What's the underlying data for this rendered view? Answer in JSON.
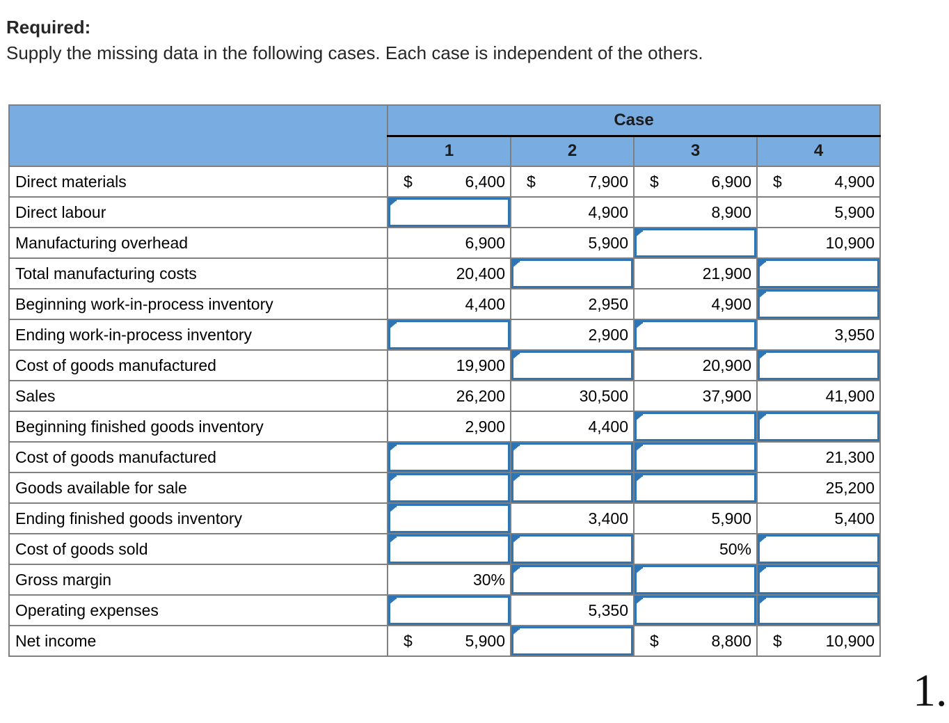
{
  "page": {
    "heading": "Required:",
    "subtitle": "Supply the missing data in the following cases. Each case is independent of the others.",
    "page_numeral": "1."
  },
  "colors": {
    "header_blue": "#79ACE1",
    "grid_gray": "#7f7f7f",
    "input_border_blue": "#2E75B6",
    "case_underline": "#000000"
  },
  "table": {
    "case_header": "Case",
    "case_columns": [
      "1",
      "2",
      "3",
      "4"
    ],
    "rows": [
      {
        "label": "Direct materials",
        "cells": [
          {
            "type": "value",
            "dollar": true,
            "value": "6,400"
          },
          {
            "type": "value",
            "dollar": true,
            "value": "7,900"
          },
          {
            "type": "value",
            "dollar": true,
            "value": "6,900"
          },
          {
            "type": "value",
            "dollar": true,
            "value": "4,900"
          }
        ]
      },
      {
        "label": "Direct labour",
        "cells": [
          {
            "type": "input"
          },
          {
            "type": "value",
            "value": "4,900"
          },
          {
            "type": "value",
            "value": "8,900"
          },
          {
            "type": "value",
            "value": "5,900"
          }
        ]
      },
      {
        "label": "Manufacturing overhead",
        "cells": [
          {
            "type": "value",
            "value": "6,900"
          },
          {
            "type": "value",
            "value": "5,900"
          },
          {
            "type": "input"
          },
          {
            "type": "value",
            "value": "10,900"
          }
        ]
      },
      {
        "label": "Total manufacturing costs",
        "cells": [
          {
            "type": "value",
            "value": "20,400"
          },
          {
            "type": "input"
          },
          {
            "type": "value",
            "value": "21,900"
          },
          {
            "type": "input"
          }
        ]
      },
      {
        "label": "Beginning work-in-process inventory",
        "cells": [
          {
            "type": "value",
            "value": "4,400"
          },
          {
            "type": "value",
            "value": "2,950"
          },
          {
            "type": "value",
            "value": "4,900"
          },
          {
            "type": "input"
          }
        ]
      },
      {
        "label": "Ending work-in-process inventory",
        "cells": [
          {
            "type": "input"
          },
          {
            "type": "value",
            "value": "2,900"
          },
          {
            "type": "input"
          },
          {
            "type": "value",
            "value": "3,950"
          }
        ]
      },
      {
        "label": "Cost of goods manufactured",
        "cells": [
          {
            "type": "value",
            "value": "19,900"
          },
          {
            "type": "input"
          },
          {
            "type": "value",
            "value": "20,900"
          },
          {
            "type": "input"
          }
        ]
      },
      {
        "label": "Sales",
        "cells": [
          {
            "type": "value",
            "value": "26,200"
          },
          {
            "type": "value",
            "value": "30,500"
          },
          {
            "type": "value",
            "value": "37,900"
          },
          {
            "type": "value",
            "value": "41,900"
          }
        ]
      },
      {
        "label": "Beginning finished goods inventory",
        "cells": [
          {
            "type": "value",
            "value": "2,900"
          },
          {
            "type": "value",
            "value": "4,400"
          },
          {
            "type": "input"
          },
          {
            "type": "input"
          }
        ]
      },
      {
        "label": "Cost of goods manufactured",
        "cells": [
          {
            "type": "input"
          },
          {
            "type": "input"
          },
          {
            "type": "input"
          },
          {
            "type": "value",
            "value": "21,300"
          }
        ]
      },
      {
        "label": "Goods available for sale",
        "cells": [
          {
            "type": "input"
          },
          {
            "type": "input"
          },
          {
            "type": "input"
          },
          {
            "type": "value",
            "value": "25,200"
          }
        ]
      },
      {
        "label": "Ending finished goods inventory",
        "cells": [
          {
            "type": "input"
          },
          {
            "type": "value",
            "value": "3,400"
          },
          {
            "type": "value",
            "value": "5,900"
          },
          {
            "type": "value",
            "value": "5,400"
          }
        ]
      },
      {
        "label": "Cost of goods sold",
        "cells": [
          {
            "type": "input"
          },
          {
            "type": "input"
          },
          {
            "type": "value",
            "value": "50%"
          },
          {
            "type": "input"
          }
        ]
      },
      {
        "label": "Gross margin",
        "cells": [
          {
            "type": "value",
            "value": "30%"
          },
          {
            "type": "input"
          },
          {
            "type": "input"
          },
          {
            "type": "input"
          }
        ]
      },
      {
        "label": "Operating expenses",
        "cells": [
          {
            "type": "input"
          },
          {
            "type": "value",
            "value": "5,350"
          },
          {
            "type": "input"
          },
          {
            "type": "input"
          }
        ]
      },
      {
        "label": "Net income",
        "cells": [
          {
            "type": "value",
            "dollar": true,
            "value": "5,900"
          },
          {
            "type": "input"
          },
          {
            "type": "value",
            "dollar": true,
            "value": "8,800"
          },
          {
            "type": "value",
            "dollar": true,
            "value": "10,900"
          }
        ]
      }
    ]
  }
}
